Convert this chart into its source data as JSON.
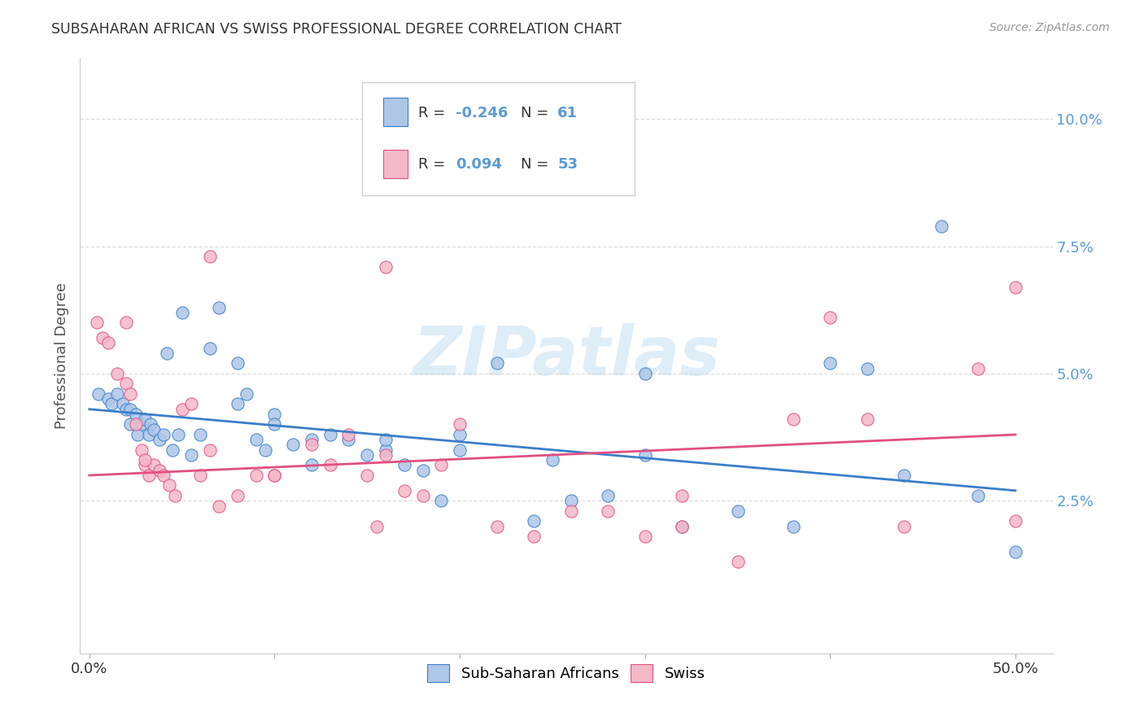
{
  "title": "SUBSAHARAN AFRICAN VS SWISS PROFESSIONAL DEGREE CORRELATION CHART",
  "source": "Source: ZipAtlas.com",
  "ylabel": "Professional Degree",
  "xlabel_ticks": [
    "0.0%",
    "",
    "",
    "",
    "",
    "50.0%"
  ],
  "xlabel_vals": [
    0.0,
    0.1,
    0.2,
    0.3,
    0.4,
    0.5
  ],
  "ytick_labels": [
    "2.5%",
    "5.0%",
    "7.5%",
    "10.0%"
  ],
  "ytick_vals": [
    0.025,
    0.05,
    0.075,
    0.1
  ],
  "xlim": [
    -0.005,
    0.52
  ],
  "ylim": [
    -0.005,
    0.112
  ],
  "blue_R": -0.246,
  "blue_N": 61,
  "pink_R": 0.094,
  "pink_N": 53,
  "blue_color": "#aec6e8",
  "pink_color": "#f4b8c8",
  "line_blue": "#3a7ec8",
  "line_pink": "#e05080",
  "watermark": "ZIPatlas",
  "blue_scatter_x": [
    0.005,
    0.01,
    0.012,
    0.015,
    0.018,
    0.02,
    0.022,
    0.022,
    0.025,
    0.026,
    0.028,
    0.03,
    0.032,
    0.033,
    0.035,
    0.038,
    0.04,
    0.042,
    0.045,
    0.048,
    0.05,
    0.055,
    0.06,
    0.065,
    0.07,
    0.08,
    0.085,
    0.09,
    0.095,
    0.1,
    0.11,
    0.12,
    0.13,
    0.14,
    0.15,
    0.16,
    0.17,
    0.18,
    0.19,
    0.2,
    0.22,
    0.24,
    0.26,
    0.28,
    0.3,
    0.32,
    0.35,
    0.4,
    0.42,
    0.46,
    0.48,
    0.5,
    0.38,
    0.3,
    0.25,
    0.2,
    0.16,
    0.12,
    0.1,
    0.08,
    0.44
  ],
  "blue_scatter_y": [
    0.046,
    0.045,
    0.044,
    0.046,
    0.044,
    0.043,
    0.043,
    0.04,
    0.042,
    0.038,
    0.04,
    0.041,
    0.038,
    0.04,
    0.039,
    0.037,
    0.038,
    0.054,
    0.035,
    0.038,
    0.062,
    0.034,
    0.038,
    0.055,
    0.063,
    0.052,
    0.046,
    0.037,
    0.035,
    0.042,
    0.036,
    0.032,
    0.038,
    0.037,
    0.034,
    0.035,
    0.032,
    0.031,
    0.025,
    0.038,
    0.052,
    0.021,
    0.025,
    0.026,
    0.034,
    0.02,
    0.023,
    0.052,
    0.051,
    0.079,
    0.026,
    0.015,
    0.02,
    0.05,
    0.033,
    0.035,
    0.037,
    0.037,
    0.04,
    0.044,
    0.03
  ],
  "pink_scatter_x": [
    0.004,
    0.007,
    0.01,
    0.015,
    0.02,
    0.022,
    0.025,
    0.028,
    0.03,
    0.032,
    0.035,
    0.038,
    0.04,
    0.043,
    0.046,
    0.05,
    0.055,
    0.06,
    0.065,
    0.07,
    0.08,
    0.09,
    0.1,
    0.12,
    0.13,
    0.14,
    0.15,
    0.155,
    0.16,
    0.17,
    0.18,
    0.19,
    0.2,
    0.22,
    0.24,
    0.26,
    0.28,
    0.3,
    0.32,
    0.35,
    0.38,
    0.4,
    0.42,
    0.44,
    0.48,
    0.5,
    0.5,
    0.32,
    0.16,
    0.1,
    0.065,
    0.03,
    0.02
  ],
  "pink_scatter_y": [
    0.06,
    0.057,
    0.056,
    0.05,
    0.048,
    0.046,
    0.04,
    0.035,
    0.032,
    0.03,
    0.032,
    0.031,
    0.03,
    0.028,
    0.026,
    0.043,
    0.044,
    0.03,
    0.035,
    0.024,
    0.026,
    0.03,
    0.03,
    0.036,
    0.032,
    0.038,
    0.03,
    0.02,
    0.034,
    0.027,
    0.026,
    0.032,
    0.04,
    0.02,
    0.018,
    0.023,
    0.023,
    0.018,
    0.02,
    0.013,
    0.041,
    0.061,
    0.041,
    0.02,
    0.051,
    0.021,
    0.067,
    0.026,
    0.071,
    0.03,
    0.073,
    0.033,
    0.06
  ],
  "blue_line_x": [
    0.0,
    0.5
  ],
  "blue_line_y": [
    0.043,
    0.027
  ],
  "pink_line_x": [
    0.0,
    0.5
  ],
  "pink_line_y": [
    0.03,
    0.038
  ],
  "legend_blue_label": "Sub-Saharan Africans",
  "legend_pink_label": "Swiss",
  "background_color": "#ffffff",
  "grid_color": "#dddddd",
  "tick_color": "#5b9bd5"
}
